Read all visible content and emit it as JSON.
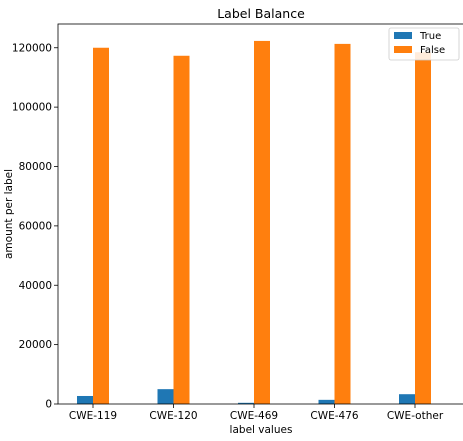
{
  "chart_data": {
    "type": "bar",
    "title": "Label Balance",
    "xlabel": "label values",
    "ylabel": "amount per label",
    "categories": [
      "CWE-119",
      "CWE-120",
      "CWE-469",
      "CWE-476",
      "CWE-other"
    ],
    "series": [
      {
        "name": "True",
        "color": "#1f77b4",
        "values": [
          2700,
          5000,
          400,
          1400,
          3300
        ]
      },
      {
        "name": "False",
        "color": "#ff7f0e",
        "values": [
          120000,
          117300,
          122300,
          121300,
          118500
        ]
      }
    ],
    "yticks": [
      0,
      20000,
      40000,
      60000,
      80000,
      100000,
      120000
    ],
    "ylim": [
      0,
      128000
    ],
    "grid": false,
    "legend_position": "top-right"
  }
}
